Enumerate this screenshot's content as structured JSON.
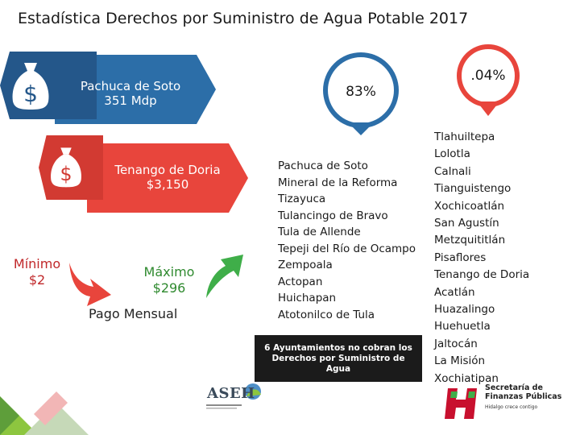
{
  "title": "Estadística Derechos por Suministro de Agua Potable 2017",
  "banners": {
    "top": {
      "line1": "Pachuca de Soto",
      "line2": "351 Mdp",
      "icon": "money-bag-icon",
      "color": "#2c6ea8"
    },
    "second": {
      "line1": "Tenango de Doria",
      "line2": "$3,150",
      "icon": "money-bag-icon",
      "color": "#e8453c"
    }
  },
  "minimum": {
    "label": "Mínimo",
    "value": "$2"
  },
  "maximum": {
    "label": "Máximo",
    "value": "$296"
  },
  "payment_label": "Pago Mensual",
  "pins": {
    "left": {
      "value": "83%",
      "color": "#2c6ea8"
    },
    "right": {
      "value": ".04%",
      "color": "#e8453c"
    }
  },
  "list_left": [
    "Pachuca de Soto",
    "Mineral de la Reforma",
    "Tizayuca",
    "Tulancingo de Bravo",
    "Tula de Allende",
    "Tepeji del Río de Ocampo",
    "Zempoala",
    "Actopan",
    "Huichapan",
    "Atotonilco de Tula"
  ],
  "list_right": [
    "Tlahuiltepa",
    "Lolotla",
    "Calnali",
    "Tianguistengo",
    "Xochicoatlán",
    "San Agustín",
    "Metzquititlán",
    "Pisaflores",
    "Tenango de Doria",
    "Acatlán",
    "Huazalingo",
    "Huehuetla",
    "Jaltocán",
    "La Misión",
    "Xochiatipan"
  ],
  "note": {
    "line1": "6 Ayuntamientos no cobran los",
    "line2": "Derechos por Suministro de",
    "line3": "Agua"
  },
  "logos": {
    "asei": "ASEH",
    "secretaria": {
      "line1": "Secretaría de",
      "line2": "Finanzas Públicas",
      "tagline": "Hidalgo crece contigo"
    }
  }
}
